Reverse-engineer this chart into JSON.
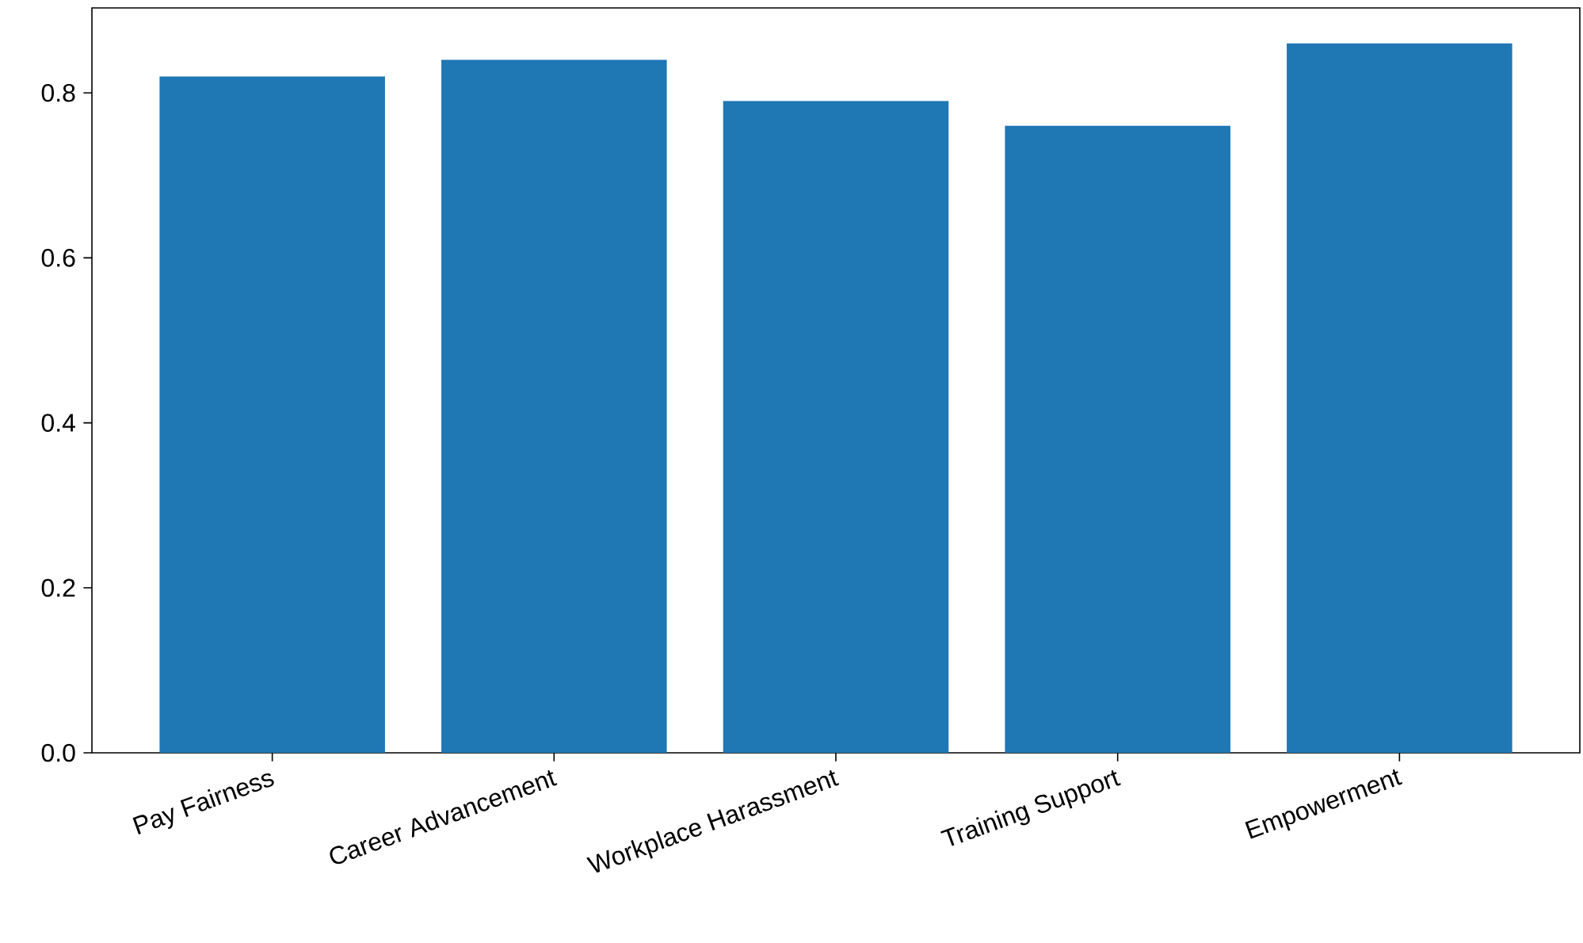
{
  "chart_data": {
    "type": "bar",
    "categories": [
      "Pay Fairness",
      "Career Advancement",
      "Workplace Harassment",
      "Training Support",
      "Empowerment"
    ],
    "values": [
      0.82,
      0.84,
      0.79,
      0.76,
      0.86
    ],
    "color": "#1f77b4",
    "ylim": [
      0,
      0.903
    ],
    "yticks": [
      {
        "value": 0,
        "label": "0.0"
      },
      {
        "value": 0.2,
        "label": "0.2"
      },
      {
        "value": 0.4,
        "label": "0.4"
      },
      {
        "value": 0.6,
        "label": "0.6"
      },
      {
        "value": 0.8,
        "label": "0.8"
      }
    ]
  }
}
